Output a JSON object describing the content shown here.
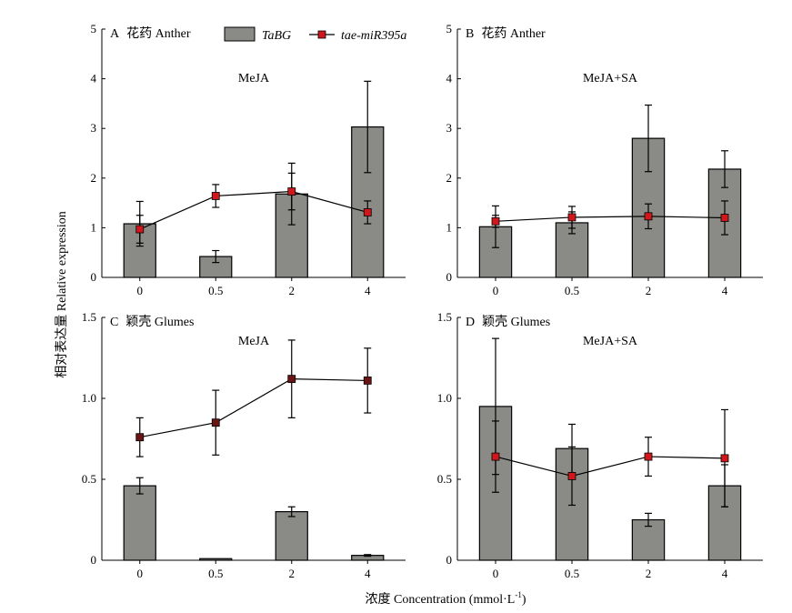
{
  "figure": {
    "ylabel": "相对表达量 Relative expression",
    "xlabel_main": "浓度 Concentration (mmol·L",
    "xlabel_sup": "-1",
    "xlabel_close": ")",
    "legend": {
      "bar_series": "TaBG",
      "line_series": "tae-miR395a"
    }
  },
  "colors": {
    "bar_fill": "#8a8a86",
    "bar_stroke": "#000000",
    "line": "#000000",
    "marker_fill": "#d0181c",
    "marker_fill_dark": "#6b1414"
  },
  "chart_data": [
    {
      "type": "bar",
      "panel_letter": "A",
      "tissue": "花药 Anther",
      "treatment": "MeJA",
      "categories": [
        "0",
        "0.5",
        "2",
        "4"
      ],
      "ylim": [
        0,
        5
      ],
      "yticks": [
        "0",
        "1",
        "2",
        "3",
        "4",
        "5"
      ],
      "bar": {
        "name": "TaBG",
        "values": [
          1.08,
          0.42,
          1.68,
          3.03
        ],
        "errors": [
          0.45,
          0.12,
          0.62,
          0.92
        ]
      },
      "line": {
        "name": "tae-miR395a",
        "values": [
          0.97,
          1.64,
          1.73,
          1.31
        ],
        "errors": [
          0.28,
          0.23,
          0.37,
          0.23
        ],
        "marker_style": "red"
      }
    },
    {
      "type": "bar",
      "panel_letter": "B",
      "tissue": "花药 Anther",
      "treatment": "MeJA+SA",
      "categories": [
        "0",
        "0.5",
        "2",
        "4"
      ],
      "ylim": [
        0,
        5
      ],
      "yticks": [
        "0",
        "1",
        "2",
        "3",
        "4",
        "5"
      ],
      "bar": {
        "name": "TaBG",
        "values": [
          1.02,
          1.1,
          2.8,
          2.18
        ],
        "errors": [
          0.42,
          0.22,
          0.67,
          0.37
        ]
      },
      "line": {
        "name": "tae-miR395a",
        "values": [
          1.13,
          1.21,
          1.23,
          1.2
        ],
        "errors": [
          0.12,
          0.22,
          0.25,
          0.34
        ],
        "marker_style": "red"
      }
    },
    {
      "type": "bar",
      "panel_letter": "C",
      "tissue": "颖壳 Glumes",
      "treatment": "MeJA",
      "categories": [
        "0",
        "0.5",
        "2",
        "4"
      ],
      "ylim": [
        0,
        1.5
      ],
      "yticks": [
        "0",
        "0.5",
        "1.0",
        "1.5"
      ],
      "bar": {
        "name": "TaBG",
        "values": [
          0.46,
          0.01,
          0.3,
          0.03
        ],
        "errors": [
          0.05,
          0.0,
          0.03,
          0.005
        ]
      },
      "line": {
        "name": "tae-miR395a",
        "values": [
          0.76,
          0.85,
          1.12,
          1.11
        ],
        "errors": [
          0.12,
          0.2,
          0.24,
          0.2
        ],
        "marker_style": "dark"
      }
    },
    {
      "type": "bar",
      "panel_letter": "D",
      "tissue": "颖壳 Glumes",
      "treatment": "MeJA+SA",
      "categories": [
        "0",
        "0.5",
        "2",
        "4"
      ],
      "ylim": [
        0,
        1.5
      ],
      "yticks": [
        "0",
        "0.5",
        "1.0",
        "1.5"
      ],
      "bar": {
        "name": "TaBG",
        "values": [
          0.95,
          0.69,
          0.25,
          0.46
        ],
        "errors": [
          0.42,
          0.15,
          0.04,
          0.13
        ]
      },
      "line": {
        "name": "tae-miR395a",
        "values": [
          0.64,
          0.52,
          0.64,
          0.63
        ],
        "errors": [
          0.22,
          0.18,
          0.12,
          0.3
        ],
        "marker_style": "red"
      }
    }
  ]
}
